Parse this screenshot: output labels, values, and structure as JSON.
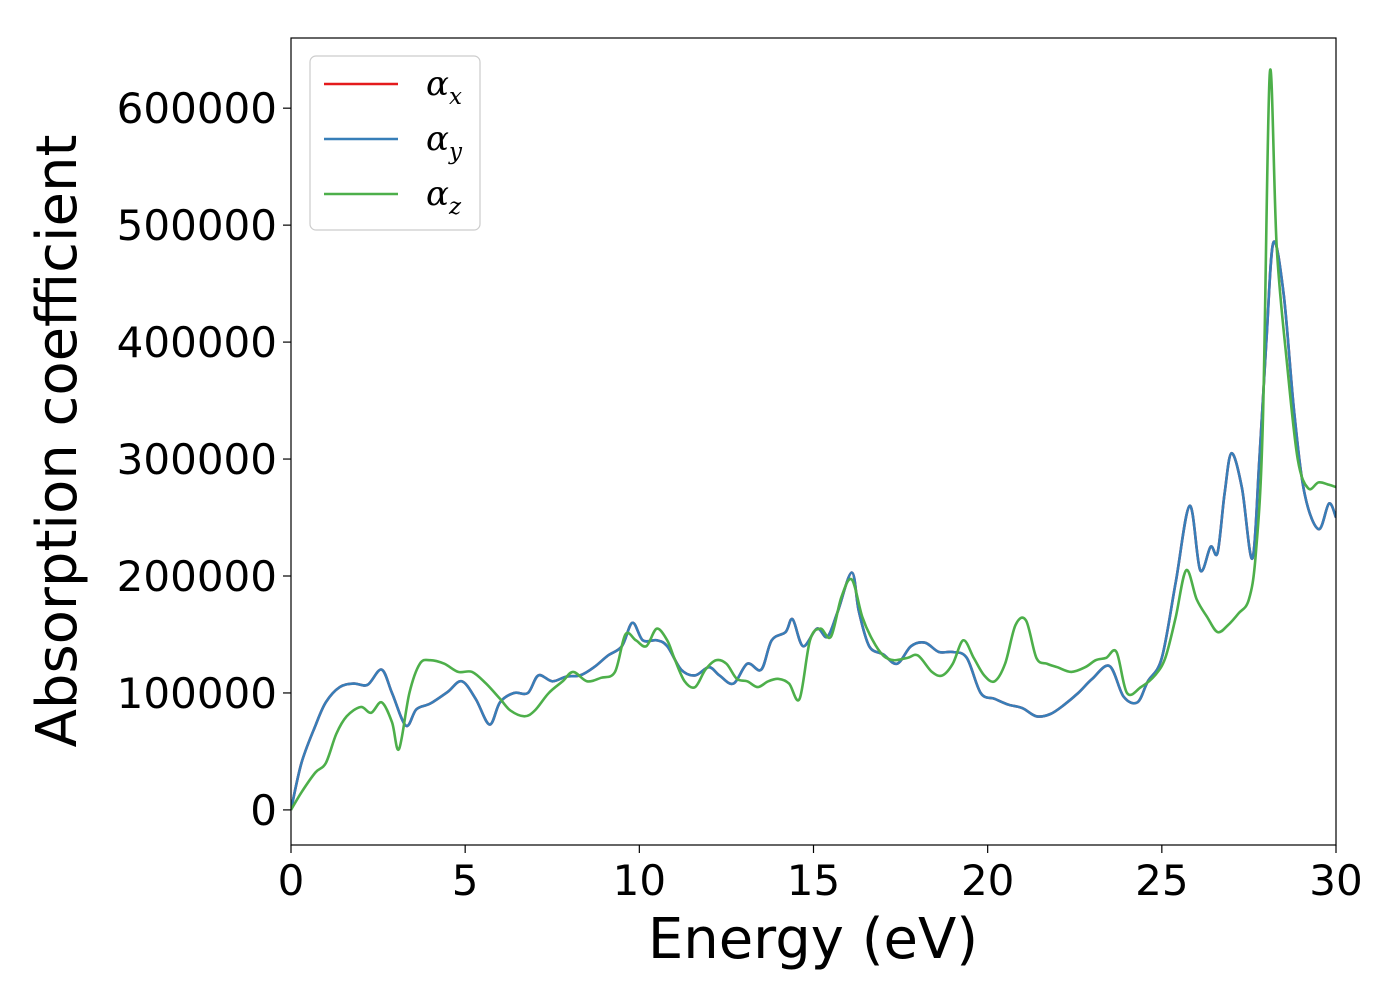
{
  "chart_data": {
    "type": "line",
    "title": "",
    "xlabel": "Energy (eV)",
    "ylabel": "Absorption coefficient",
    "xlim": [
      0,
      30
    ],
    "ylim": [
      -30000,
      660000
    ],
    "xticks": [
      0,
      5,
      10,
      15,
      20,
      25,
      30
    ],
    "xtick_labels": [
      "0",
      "5",
      "10",
      "15",
      "20",
      "25",
      "30"
    ],
    "yticks": [
      0,
      100000,
      200000,
      300000,
      400000,
      500000,
      600000
    ],
    "ytick_labels": [
      "0",
      "100000",
      "200000",
      "300000",
      "400000",
      "500000",
      "600000"
    ],
    "grid": false,
    "legend_position": "top-left",
    "series": [
      {
        "name": "αx",
        "legend_main": "α",
        "legend_sub": "x",
        "color": "#e41a1c",
        "x": [
          0,
          0.3,
          0.7,
          1.0,
          1.4,
          1.8,
          2.2,
          2.6,
          2.9,
          3.3,
          3.6,
          4.0,
          4.5,
          4.9,
          5.3,
          5.7,
          6.0,
          6.4,
          6.8,
          7.1,
          7.5,
          7.9,
          8.3,
          8.7,
          9.1,
          9.5,
          9.8,
          10.1,
          10.5,
          10.8,
          11.2,
          11.6,
          12.0,
          12.3,
          12.7,
          13.1,
          13.5,
          13.8,
          14.2,
          14.4,
          14.7,
          15.1,
          15.4,
          15.7,
          16.1,
          16.3,
          16.6,
          17.0,
          17.4,
          17.8,
          18.2,
          18.6,
          19.0,
          19.4,
          19.8,
          20.2,
          20.6,
          21.0,
          21.4,
          21.8,
          22.2,
          22.6,
          23.0,
          23.5,
          23.9,
          24.3,
          24.6,
          25.0,
          25.4,
          25.8,
          26.1,
          26.4,
          26.6,
          26.8,
          27.0,
          27.3,
          27.6,
          27.8,
          28.0,
          28.2,
          28.5,
          28.8,
          29.1,
          29.5,
          29.8,
          30.0
        ],
        "y": [
          0,
          40000,
          72000,
          92000,
          105000,
          108000,
          107000,
          120000,
          100000,
          72000,
          86000,
          91000,
          101000,
          110000,
          95000,
          73000,
          92000,
          100000,
          100000,
          115000,
          110000,
          114000,
          115000,
          122000,
          132000,
          140000,
          160000,
          145000,
          145000,
          140000,
          120000,
          115000,
          122000,
          115000,
          108000,
          125000,
          120000,
          145000,
          152000,
          163000,
          140000,
          155000,
          148000,
          170000,
          203000,
          170000,
          140000,
          133000,
          125000,
          140000,
          143000,
          135000,
          135000,
          130000,
          100000,
          95000,
          90000,
          87000,
          80000,
          82000,
          90000,
          100000,
          112000,
          123000,
          97000,
          92000,
          110000,
          130000,
          195000,
          260000,
          205000,
          225000,
          220000,
          270000,
          305000,
          275000,
          215000,
          300000,
          400000,
          485000,
          440000,
          340000,
          270000,
          240000,
          262000,
          250000
        ]
      },
      {
        "name": "αy",
        "legend_main": "α",
        "legend_sub": "y",
        "color": "#377eb8",
        "x": [
          0,
          0.3,
          0.7,
          1.0,
          1.4,
          1.8,
          2.2,
          2.6,
          2.9,
          3.3,
          3.6,
          4.0,
          4.5,
          4.9,
          5.3,
          5.7,
          6.0,
          6.4,
          6.8,
          7.1,
          7.5,
          7.9,
          8.3,
          8.7,
          9.1,
          9.5,
          9.8,
          10.1,
          10.5,
          10.8,
          11.2,
          11.6,
          12.0,
          12.3,
          12.7,
          13.1,
          13.5,
          13.8,
          14.2,
          14.4,
          14.7,
          15.1,
          15.4,
          15.7,
          16.1,
          16.3,
          16.6,
          17.0,
          17.4,
          17.8,
          18.2,
          18.6,
          19.0,
          19.4,
          19.8,
          20.2,
          20.6,
          21.0,
          21.4,
          21.8,
          22.2,
          22.6,
          23.0,
          23.5,
          23.9,
          24.3,
          24.6,
          25.0,
          25.4,
          25.8,
          26.1,
          26.4,
          26.6,
          26.8,
          27.0,
          27.3,
          27.6,
          27.8,
          28.0,
          28.2,
          28.5,
          28.8,
          29.1,
          29.5,
          29.8,
          30.0
        ],
        "y": [
          0,
          40000,
          72000,
          92000,
          105000,
          108000,
          107000,
          120000,
          100000,
          72000,
          86000,
          91000,
          101000,
          110000,
          95000,
          73000,
          92000,
          100000,
          100000,
          115000,
          110000,
          114000,
          115000,
          122000,
          132000,
          140000,
          160000,
          145000,
          145000,
          140000,
          120000,
          115000,
          122000,
          115000,
          108000,
          125000,
          120000,
          145000,
          152000,
          163000,
          140000,
          155000,
          148000,
          170000,
          203000,
          170000,
          140000,
          133000,
          125000,
          140000,
          143000,
          135000,
          135000,
          130000,
          100000,
          95000,
          90000,
          87000,
          80000,
          82000,
          90000,
          100000,
          112000,
          123000,
          97000,
          92000,
          110000,
          130000,
          195000,
          260000,
          205000,
          225000,
          220000,
          270000,
          305000,
          275000,
          215000,
          300000,
          400000,
          485000,
          440000,
          340000,
          270000,
          240000,
          262000,
          250000
        ]
      },
      {
        "name": "αz",
        "legend_main": "α",
        "legend_sub": "z",
        "color": "#4daf4a",
        "x": [
          0,
          0.3,
          0.7,
          1.0,
          1.3,
          1.6,
          2.0,
          2.3,
          2.6,
          2.9,
          3.1,
          3.4,
          3.7,
          4.0,
          4.4,
          4.8,
          5.2,
          5.6,
          6.0,
          6.3,
          6.7,
          7.0,
          7.4,
          7.8,
          8.1,
          8.5,
          8.9,
          9.3,
          9.6,
          9.9,
          10.2,
          10.5,
          10.8,
          11.0,
          11.3,
          11.6,
          11.9,
          12.2,
          12.5,
          12.8,
          13.1,
          13.4,
          13.7,
          14.0,
          14.3,
          14.6,
          14.9,
          15.2,
          15.5,
          15.8,
          16.1,
          16.4,
          16.7,
          17.0,
          17.3,
          17.7,
          18.0,
          18.4,
          18.7,
          19.0,
          19.3,
          19.6,
          19.9,
          20.2,
          20.5,
          20.8,
          21.1,
          21.4,
          21.7,
          22.0,
          22.4,
          22.8,
          23.1,
          23.4,
          23.7,
          24.0,
          24.4,
          24.8,
          25.1,
          25.4,
          25.7,
          26.0,
          26.3,
          26.6,
          26.9,
          27.2,
          27.5,
          27.7,
          27.9,
          28.1,
          28.3,
          28.6,
          28.9,
          29.2,
          29.5,
          29.8,
          30.0
        ],
        "y": [
          0,
          15000,
          32000,
          40000,
          65000,
          80000,
          88000,
          83000,
          92000,
          75000,
          52000,
          100000,
          125000,
          128000,
          125000,
          118000,
          118000,
          108000,
          95000,
          85000,
          80000,
          85000,
          100000,
          110000,
          118000,
          110000,
          113000,
          118000,
          150000,
          145000,
          140000,
          155000,
          145000,
          130000,
          110000,
          105000,
          120000,
          128000,
          125000,
          112000,
          110000,
          105000,
          110000,
          112000,
          108000,
          95000,
          145000,
          155000,
          148000,
          182000,
          197000,
          165000,
          145000,
          132000,
          128000,
          130000,
          132000,
          118000,
          115000,
          125000,
          145000,
          130000,
          115000,
          110000,
          125000,
          158000,
          162000,
          130000,
          125000,
          122000,
          118000,
          122000,
          128000,
          130000,
          135000,
          100000,
          105000,
          115000,
          130000,
          165000,
          205000,
          180000,
          165000,
          152000,
          158000,
          168000,
          180000,
          220000,
          330000,
          630000,
          480000,
          380000,
          300000,
          275000,
          280000,
          278000,
          276000
        ]
      }
    ]
  }
}
